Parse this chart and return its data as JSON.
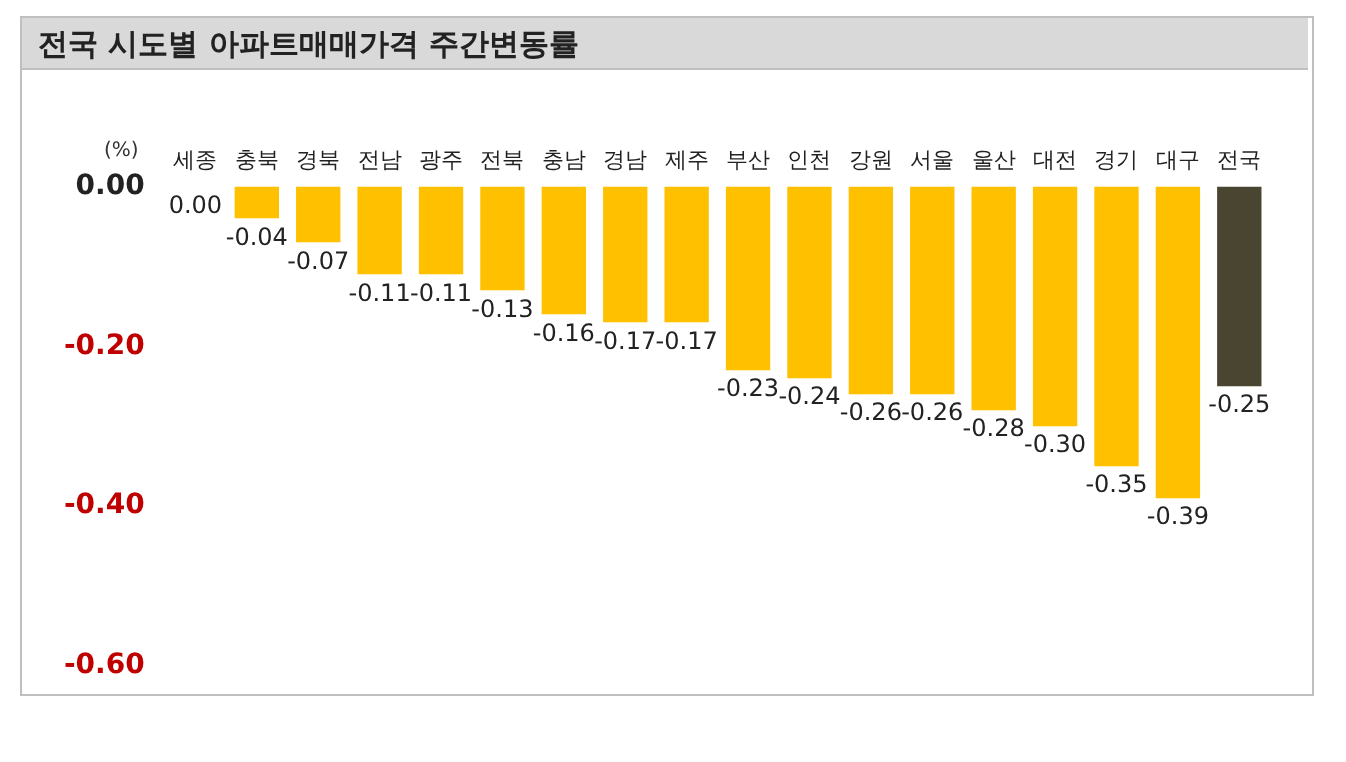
{
  "chart_data": {
    "type": "bar",
    "title": "전국 시도별 아파트매매가격 주간변동률",
    "ylabel": "(%)",
    "categories": [
      "세종",
      "충북",
      "경북",
      "전남",
      "광주",
      "전북",
      "충남",
      "경남",
      "제주",
      "부산",
      "인천",
      "강원",
      "서울",
      "울산",
      "대전",
      "경기",
      "대구",
      "전국"
    ],
    "values": [
      0.0,
      -0.04,
      -0.07,
      -0.11,
      -0.11,
      -0.13,
      -0.16,
      -0.17,
      -0.17,
      -0.23,
      -0.24,
      -0.26,
      -0.26,
      -0.28,
      -0.3,
      -0.35,
      -0.39,
      -0.25
    ],
    "colors": [
      "#ffc000",
      "#ffc000",
      "#ffc000",
      "#ffc000",
      "#ffc000",
      "#ffc000",
      "#ffc000",
      "#ffc000",
      "#ffc000",
      "#ffc000",
      "#ffc000",
      "#ffc000",
      "#ffc000",
      "#ffc000",
      "#ffc000",
      "#ffc000",
      "#ffc000",
      "#4a4530"
    ],
    "value_labels": [
      "0.00",
      "-0.04",
      "-0.07",
      "-0.11",
      "-0.11",
      "-0.13",
      "-0.16",
      "-0.17",
      "-0.17",
      "-0.23",
      "-0.24",
      "-0.26",
      "-0.26",
      "-0.28",
      "-0.30",
      "-0.35",
      "-0.39",
      "-0.25"
    ],
    "ylim": [
      -0.6,
      0
    ],
    "yticks": [
      {
        "value": 0,
        "label": "0.00"
      },
      {
        "value": -0.2,
        "label": "-0.20"
      },
      {
        "value": -0.4,
        "label": "-0.40"
      },
      {
        "value": -0.6,
        "label": "-0.60"
      }
    ],
    "grid": false,
    "legend": false
  }
}
